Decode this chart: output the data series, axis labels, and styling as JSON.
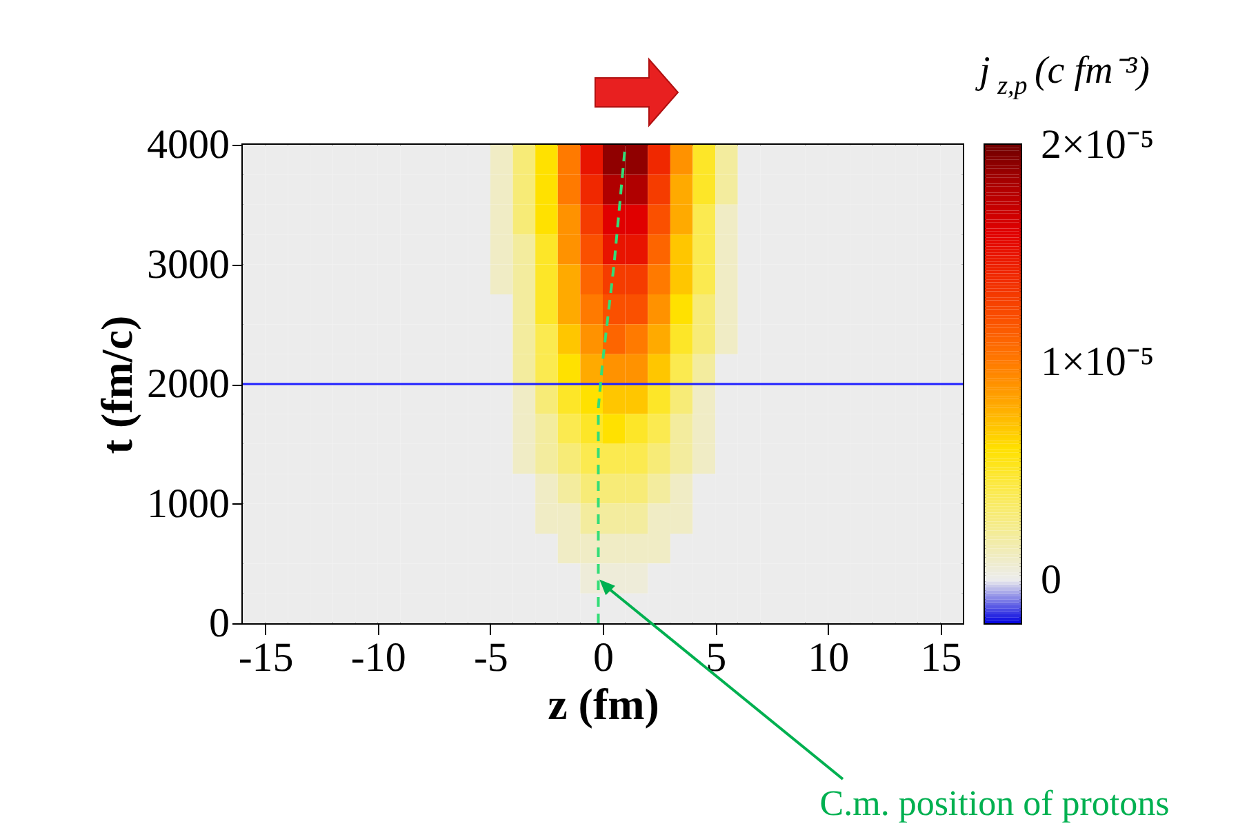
{
  "chart_data": {
    "type": "heatmap",
    "xlabel": "z (fm)",
    "ylabel": "t (fm/c)",
    "clabel": "j$_{z,p}$ (c fm⁻³)",
    "x": [
      -15.5,
      -14.5,
      -13.5,
      -12.5,
      -11.5,
      -10.5,
      -9.5,
      -8.5,
      -7.5,
      -6.5,
      -5.5,
      -4.5,
      -3.5,
      -2.5,
      -1.5,
      -0.5,
      0.5,
      1.5,
      2.5,
      3.5,
      4.5,
      5.5,
      6.5,
      7.5,
      8.5,
      9.5,
      10.5,
      11.5,
      12.5,
      13.5,
      14.5,
      15.5
    ],
    "y": [
      3875,
      3625,
      3375,
      3125,
      2875,
      2625,
      2375,
      2125,
      1875,
      1625,
      1375,
      1125,
      875,
      625,
      375,
      125
    ],
    "cells": [
      [
        0,
        0,
        0,
        0,
        0,
        0,
        0,
        0,
        0,
        0,
        0,
        1e-06,
        3e-06,
        6e-06,
        1e-05,
        1.5e-05,
        1.9e-05,
        1.9e-05,
        1.4e-05,
        9e-06,
        5e-06,
        2e-06,
        0,
        0,
        0,
        0,
        0,
        0,
        0,
        0,
        0,
        0
      ],
      [
        0,
        0,
        0,
        0,
        0,
        0,
        0,
        0,
        0,
        0,
        0,
        1e-06,
        3e-06,
        6e-06,
        1e-05,
        1.4e-05,
        1.8e-05,
        1.8e-05,
        1.3e-05,
        8e-06,
        5e-06,
        2e-06,
        0,
        0,
        0,
        0,
        0,
        0,
        0,
        0,
        0,
        0
      ],
      [
        0,
        0,
        0,
        0,
        0,
        0,
        0,
        0,
        0,
        0,
        0,
        1e-06,
        3e-06,
        6e-06,
        9e-06,
        1.3e-05,
        1.6e-05,
        1.6e-05,
        1.2e-05,
        8e-06,
        4e-06,
        1e-06,
        0,
        0,
        0,
        0,
        0,
        0,
        0,
        0,
        0,
        0
      ],
      [
        0,
        0,
        0,
        0,
        0,
        0,
        0,
        0,
        0,
        0,
        0,
        1e-06,
        2e-06,
        5e-06,
        9e-06,
        1.2e-05,
        1.5e-05,
        1.5e-05,
        1.1e-05,
        7e-06,
        4e-06,
        1e-06,
        0,
        0,
        0,
        0,
        0,
        0,
        0,
        0,
        0,
        0
      ],
      [
        0,
        0,
        0,
        0,
        0,
        0,
        0,
        0,
        0,
        0,
        0,
        1e-06,
        2e-06,
        5e-06,
        8e-06,
        1.1e-05,
        1.3e-05,
        1.3e-05,
        1e-05,
        7e-06,
        4e-06,
        1e-06,
        0,
        0,
        0,
        0,
        0,
        0,
        0,
        0,
        0,
        0
      ],
      [
        0,
        0,
        0,
        0,
        0,
        0,
        0,
        0,
        0,
        0,
        0,
        0,
        2e-06,
        5e-06,
        8e-06,
        1e-05,
        1.2e-05,
        1.2e-05,
        9e-06,
        6e-06,
        3e-06,
        1e-06,
        0,
        0,
        0,
        0,
        0,
        0,
        0,
        0,
        0,
        0
      ],
      [
        0,
        0,
        0,
        0,
        0,
        0,
        0,
        0,
        0,
        0,
        0,
        0,
        2e-06,
        4e-06,
        7e-06,
        9e-06,
        1.1e-05,
        1e-05,
        8e-06,
        5e-06,
        3e-06,
        1e-06,
        0,
        0,
        0,
        0,
        0,
        0,
        0,
        0,
        0,
        0
      ],
      [
        0,
        0,
        0,
        0,
        0,
        0,
        0,
        0,
        0,
        0,
        0,
        0,
        2e-06,
        4e-06,
        6e-06,
        8e-06,
        9e-06,
        9e-06,
        7e-06,
        4e-06,
        2e-06,
        0,
        0,
        0,
        0,
        0,
        0,
        0,
        0,
        0,
        0,
        0
      ],
      [
        0,
        0,
        0,
        0,
        0,
        0,
        0,
        0,
        0,
        0,
        0,
        0,
        1e-06,
        3e-06,
        5e-06,
        6e-06,
        7e-06,
        7e-06,
        5e-06,
        3e-06,
        1e-06,
        0,
        0,
        0,
        0,
        0,
        0,
        0,
        0,
        0,
        0,
        0
      ],
      [
        0,
        0,
        0,
        0,
        0,
        0,
        0,
        0,
        0,
        0,
        0,
        0,
        1e-06,
        2e-06,
        4e-06,
        5e-06,
        6e-06,
        5e-06,
        4e-06,
        2e-06,
        1e-06,
        0,
        0,
        0,
        0,
        0,
        0,
        0,
        0,
        0,
        0,
        0
      ],
      [
        0,
        0,
        0,
        0,
        0,
        0,
        0,
        0,
        0,
        0,
        0,
        0,
        1e-06,
        2e-06,
        3e-06,
        4e-06,
        4e-06,
        4e-06,
        3e-06,
        2e-06,
        1e-06,
        0,
        0,
        0,
        0,
        0,
        0,
        0,
        0,
        0,
        0,
        0
      ],
      [
        0,
        0,
        0,
        0,
        0,
        0,
        0,
        0,
        0,
        0,
        0,
        0,
        0,
        1e-06,
        2e-06,
        3e-06,
        3e-06,
        3e-06,
        2e-06,
        1e-06,
        0,
        0,
        0,
        0,
        0,
        0,
        0,
        0,
        0,
        0,
        0,
        0
      ],
      [
        0,
        0,
        0,
        0,
        0,
        0,
        0,
        0,
        0,
        0,
        0,
        0,
        0,
        1e-06,
        1e-06,
        2e-06,
        2e-06,
        2e-06,
        1e-06,
        1e-06,
        0,
        0,
        0,
        0,
        0,
        0,
        0,
        0,
        0,
        0,
        0,
        0
      ],
      [
        0,
        0,
        0,
        0,
        0,
        0,
        0,
        0,
        0,
        0,
        0,
        0,
        0,
        0,
        1e-06,
        1e-06,
        1e-06,
        1e-06,
        1e-06,
        0,
        0,
        0,
        0,
        0,
        0,
        0,
        0,
        0,
        0,
        0,
        0,
        0
      ],
      [
        0,
        0,
        0,
        0,
        0,
        0,
        0,
        0,
        0,
        0,
        0,
        0,
        0,
        0,
        0,
        5e-07,
        5e-07,
        5e-07,
        0,
        0,
        0,
        0,
        0,
        0,
        0,
        0,
        0,
        0,
        0,
        0,
        0,
        0
      ],
      [
        0,
        0,
        0,
        0,
        0,
        0,
        0,
        0,
        0,
        0,
        0,
        0,
        0,
        0,
        0,
        0,
        0,
        0,
        0,
        0,
        0,
        0,
        0,
        0,
        0,
        0,
        0,
        0,
        0,
        0,
        0,
        0
      ]
    ],
    "clim": [
      -2e-06,
      2e-05
    ],
    "colors": [
      "#0000e0",
      "#ececec",
      "#f3ec9e",
      "#fbea50",
      "#ffe100",
      "#ffaa00",
      "#ff7a00",
      "#fa5000",
      "#f02800",
      "#e00000",
      "#b00000",
      "#700000"
    ],
    "cticks": [
      {
        "value": 2e-05,
        "label": "2×10⁻⁵"
      },
      {
        "value": 1e-05,
        "label": "1×10⁻⁵"
      },
      0
    ],
    "xlim": [
      -16,
      16
    ],
    "ylim": [
      0,
      4000
    ],
    "xticks": [
      -15,
      -10,
      -5,
      0,
      5,
      10,
      15
    ],
    "yticks": [
      0,
      1000,
      2000,
      3000,
      4000
    ],
    "series": [
      {
        "type": "line",
        "color": "#33dd77",
        "line_style": "dashed",
        "x": [
          -0.2,
          -0.2,
          0,
          0.5,
          1.0
        ],
        "values": [
          0,
          1800,
          2200,
          3000,
          4000
        ]
      }
    ],
    "ref_lines": [
      {
        "axis": "y",
        "value": 2000,
        "color": "#2020ff"
      }
    ],
    "annotations": [
      {
        "text": "C.m. position of protons",
        "x": 0.2,
        "y": 300
      }
    ]
  }
}
